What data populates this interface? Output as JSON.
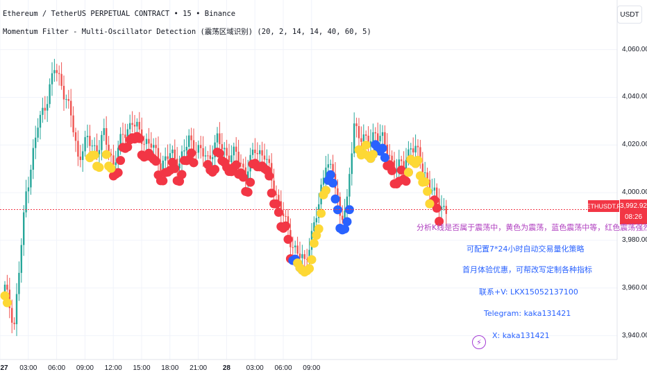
{
  "legend": {
    "title": "Ethereum / TetherUS PERPETUAL CONTRACT • 15 • Binance",
    "indicator": "Momentum  Filter - Multi-Oscillator Detection (震荡区域识别) (20, 2, 14, 14, 40, 60, 5)"
  },
  "currency_button": "USDT",
  "symbol_tag": "ETHUSDT.P",
  "last_price": "3,992.92",
  "countdown": "08:26",
  "promo_lines": [
    "分析K线是否属于震荡中，黄色为震荡，蓝色震荡中等，红色震荡强烈",
    "可配置7*24小时自动交易量化策略",
    "首月体验优惠，可帮改写定制各种指标",
    "联系+V: LKX15052137100",
    "Telegram: kaka131421",
    "X: kaka131421"
  ],
  "colors": {
    "up": "#26a69a",
    "down": "#ef5350",
    "dot_strong": "#f23645",
    "dot_medium": "#2962ff",
    "dot_weak": "#fdd835",
    "price_line": "#f23645"
  },
  "chart_data": {
    "type": "candlestick",
    "symbol": "ETHUSDT.P",
    "interval": "15",
    "ylim": [
      3930,
      4075
    ],
    "y_ticks": [
      "4,060.00",
      "4,040.00",
      "4,020.00",
      "4,000.00",
      "3,980.00",
      "3,960.00",
      "3,940.00"
    ],
    "x_ticks": [
      "27",
      "03:00",
      "06:00",
      "09:00",
      "12:00",
      "15:00",
      "18:00",
      "21:00",
      "28",
      "03:00",
      "06:00",
      "09:00"
    ],
    "x_ticks_bold": [
      "27",
      "28"
    ],
    "last_price": 3992.92,
    "anchors": [
      [
        0,
        3960
      ],
      [
        4,
        3945
      ],
      [
        9,
        4000
      ],
      [
        14,
        4028
      ],
      [
        18,
        4040
      ],
      [
        21,
        4052
      ],
      [
        24,
        4046
      ],
      [
        28,
        4032
      ],
      [
        31,
        4015
      ],
      [
        35,
        4022
      ],
      [
        39,
        4018
      ],
      [
        42,
        4024
      ],
      [
        46,
        4012
      ],
      [
        50,
        4024
      ],
      [
        54,
        4030
      ],
      [
        58,
        4023
      ],
      [
        62,
        4020
      ],
      [
        66,
        4012
      ],
      [
        70,
        4016
      ],
      [
        74,
        4013
      ],
      [
        78,
        4022
      ],
      [
        82,
        4018
      ],
      [
        86,
        4014
      ],
      [
        90,
        4022
      ],
      [
        94,
        4016
      ],
      [
        98,
        4016
      ],
      [
        102,
        4008
      ],
      [
        106,
        4018
      ],
      [
        110,
        4016
      ],
      [
        114,
        4002
      ],
      [
        118,
        3990
      ],
      [
        121,
        3980
      ],
      [
        124,
        3975
      ],
      [
        127,
        3970
      ],
      [
        130,
        3983
      ],
      [
        133,
        3994
      ],
      [
        136,
        4014
      ],
      [
        139,
        4008
      ],
      [
        142,
        3990
      ],
      [
        145,
        3996
      ],
      [
        148,
        4028
      ],
      [
        151,
        4024
      ],
      [
        154,
        4020
      ],
      [
        157,
        4026
      ],
      [
        160,
        4022
      ],
      [
        163,
        4015
      ],
      [
        166,
        4010
      ],
      [
        169,
        4012
      ],
      [
        172,
        4020
      ],
      [
        175,
        4016
      ],
      [
        178,
        4008
      ],
      [
        181,
        4000
      ],
      [
        184,
        3996
      ],
      [
        187,
        3992
      ]
    ],
    "oscillator_dots": [
      {
        "level": "strong",
        "segments": [
          [
            46,
            80
          ],
          [
            86,
            122
          ],
          [
            162,
            174
          ],
          [
            180,
            184
          ]
        ]
      },
      {
        "level": "medium",
        "segments": [
          [
            122,
            126
          ],
          [
            136,
            146
          ],
          [
            155,
            161
          ]
        ]
      },
      {
        "level": "weak",
        "segments": [
          [
            0,
            1
          ],
          [
            36,
            40
          ],
          [
            43,
            45
          ],
          [
            124,
            136
          ],
          [
            150,
            156
          ],
          [
            171,
            180
          ]
        ]
      }
    ]
  }
}
